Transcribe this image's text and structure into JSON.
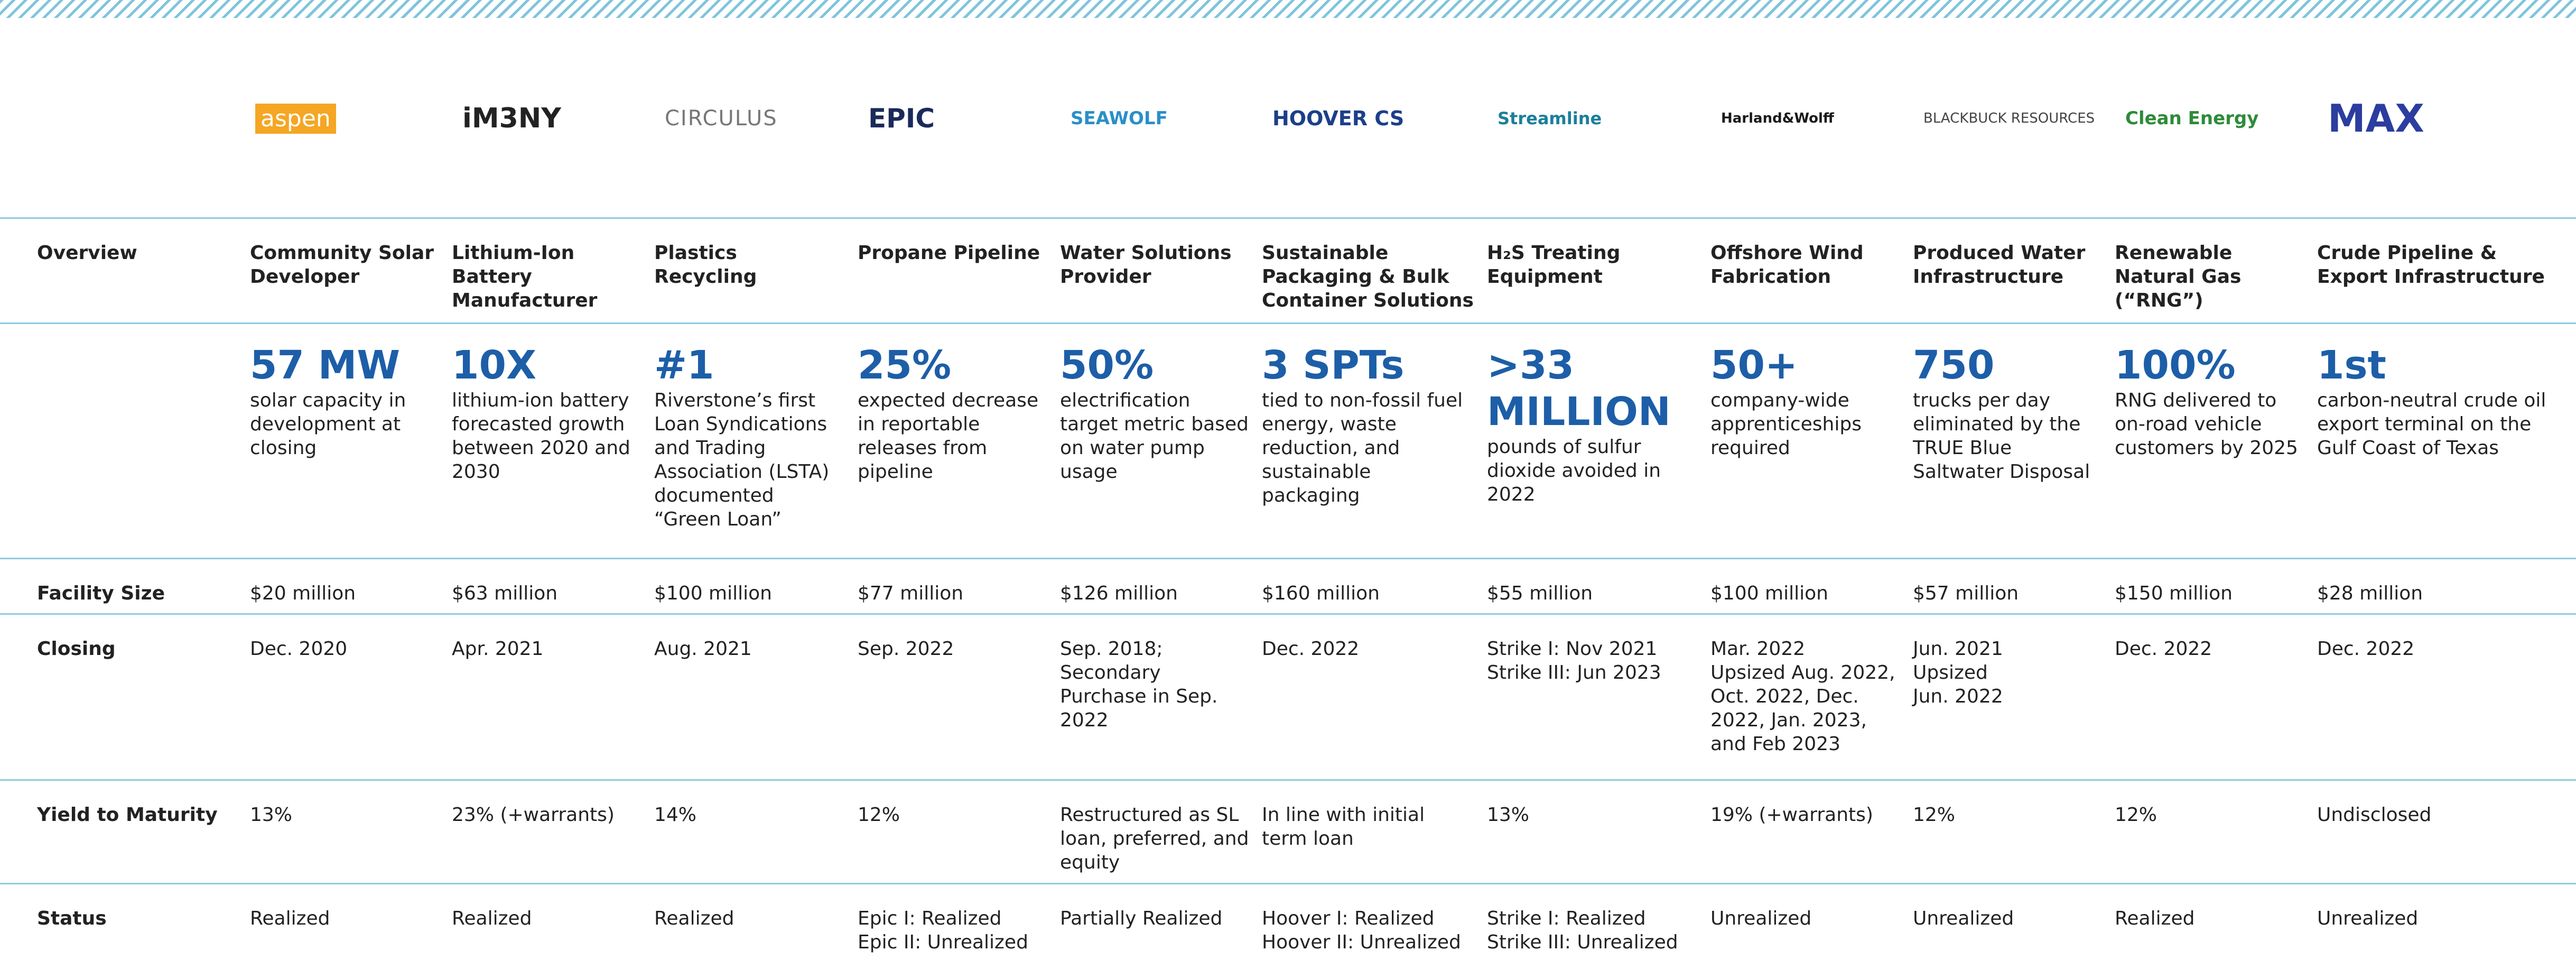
{
  "row_labels": {
    "overview": "Overview",
    "facility_size": "Facility Size",
    "closing": "Closing",
    "yield": "Yield to Maturity",
    "status": "Status"
  },
  "companies": [
    {
      "logo": "aspen",
      "overview": "Community Solar Developer",
      "metric": "57 MW",
      "metric_desc": "solar capacity in development at closing",
      "facility_size": "$20 million",
      "closing": "Dec. 2020",
      "yield": "13%",
      "status": "Realized"
    },
    {
      "logo": "iM3NY",
      "overview": "Lithium-Ion Battery Manufacturer",
      "metric": "10X",
      "metric_desc": "lithium-ion battery forecasted growth between 2020 and 2030",
      "facility_size": "$63 million",
      "closing": "Apr. 2021",
      "yield": "23% (+warrants)",
      "status": "Realized"
    },
    {
      "logo": "CIRCULUS",
      "overview": "Plastics Recycling",
      "metric": "#1",
      "metric_desc": "Riverstone’s first Loan Syndications and Trading Association (LSTA) documented “Green Loan”",
      "facility_size": "$100 million",
      "closing": "Aug. 2021",
      "yield": "14%",
      "status": "Realized"
    },
    {
      "logo": "EPIC",
      "overview": "Propane Pipeline",
      "metric": "25%",
      "metric_desc": "expected decrease in reportable releases from pipeline",
      "facility_size": "$77 million",
      "closing": "Sep. 2022",
      "yield": "12%",
      "status": "Epic I: Realized\nEpic II: Unrealized"
    },
    {
      "logo": "SEAWOLF",
      "overview": "Water Solutions Provider",
      "metric": "50%",
      "metric_desc": "electrification target metric based on water pump usage",
      "facility_size": "$126 million",
      "closing": "Sep. 2018;\nSecondary Purchase in Sep. 2022",
      "yield": "Restructured as SL loan, preferred, and equity",
      "status": "Partially Realized"
    },
    {
      "logo": "HOOVER CS",
      "overview": "Sustainable Packaging & Bulk Container Solutions",
      "metric": "3 SPTs",
      "metric_desc": "tied to non-fossil fuel energy, waste reduction, and sustainable packaging",
      "facility_size": "$160 million",
      "closing": "Dec. 2022",
      "yield": "In line with initial term loan",
      "status": "Hoover I: Realized\nHoover II: Unrealized"
    },
    {
      "logo": "Streamline",
      "overview": "H₂S Treating Equipment",
      "metric": ">33 MILLION",
      "metric_desc": "pounds of sulfur dioxide avoided in 2022",
      "facility_size": "$55 million",
      "closing": "Strike I: Nov 2021\nStrike III: Jun 2023",
      "yield": "13%",
      "status": "Strike I: Realized\nStrike III: Unrealized"
    },
    {
      "logo": "Harland&Wolff",
      "overview": "Offshore Wind Fabrication",
      "metric": "50+",
      "metric_desc": "company-wide apprenticeships required",
      "facility_size": "$100 million",
      "closing": "Mar. 2022\nUpsized Aug. 2022, Oct. 2022, Dec. 2022, Jan. 2023, and Feb 2023",
      "yield": "19% (+warrants)",
      "status": "Unrealized"
    },
    {
      "logo": "BLACKBUCK RESOURCES",
      "overview": "Produced Water Infrastructure",
      "metric": "750",
      "metric_desc": "trucks per day eliminated by the TRUE Blue Saltwater Disposal",
      "facility_size": "$57 million",
      "closing": "Jun. 2021\nUpsized\nJun. 2022",
      "yield": "12%",
      "status": "Unrealized"
    },
    {
      "logo": "Clean Energy",
      "overview": "Renewable Natural Gas (“RNG”)",
      "metric": "100%",
      "metric_desc": "RNG delivered to on-road vehicle customers by 2025",
      "facility_size": "$150 million",
      "closing": "Dec. 2022",
      "yield": "12%",
      "status": "Realized"
    },
    {
      "logo": "MAX",
      "overview": "Crude Pipeline & Export Infrastructure",
      "metric": "1st",
      "metric_desc": "carbon-neutral crude oil export terminal on the Gulf Coast of Texas",
      "facility_size": "$28 million",
      "closing": "Dec. 2022",
      "yield": "Undisclosed",
      "status": "Unrealized"
    }
  ]
}
